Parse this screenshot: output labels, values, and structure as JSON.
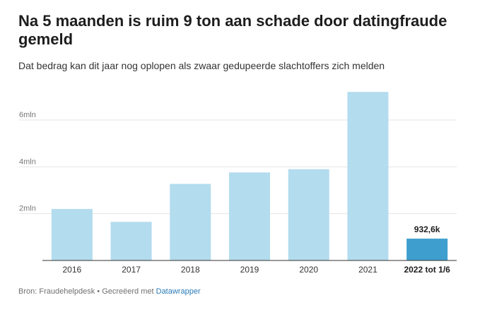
{
  "title": "Na 5 maanden is ruim 9 ton aan schade door datingfraude gemeld",
  "subtitle": "Dat bedrag kan dit jaar nog oplopen als zwaar gedupeerde slachtoffers zich melden",
  "footer": {
    "source_text": "Bron: Fraudehelpdesk • Gecreëerd met ",
    "link_text": "Datawrapper"
  },
  "colors": {
    "bar": "#b3dcee",
    "bar_highlight": "#3e9fce",
    "gridline": "#e5e5e5",
    "baseline": "#333333"
  },
  "chart_data": {
    "type": "bar",
    "title": "Na 5 maanden is ruim 9 ton aan schade door datingfraude gemeld",
    "subtitle": "Dat bedrag kan dit jaar nog oplopen als zwaar gedupeerde slachtoffers zich melden",
    "categories": [
      "2016",
      "2017",
      "2018",
      "2019",
      "2020",
      "2021",
      "2022 tot 1/6"
    ],
    "values": [
      2200000,
      1650000,
      3270000,
      3760000,
      3900000,
      7200000,
      932600
    ],
    "highlight_index": 6,
    "data_labels": [
      {
        "index": 6,
        "text": "932,6k"
      }
    ],
    "y_ticks": [
      {
        "value": 2000000,
        "label": "2mln"
      },
      {
        "value": 4000000,
        "label": "4mln"
      },
      {
        "value": 6000000,
        "label": "6mln"
      }
    ],
    "ylim": [
      0,
      7500000
    ],
    "grid": true,
    "xlabel": "",
    "ylabel": ""
  }
}
